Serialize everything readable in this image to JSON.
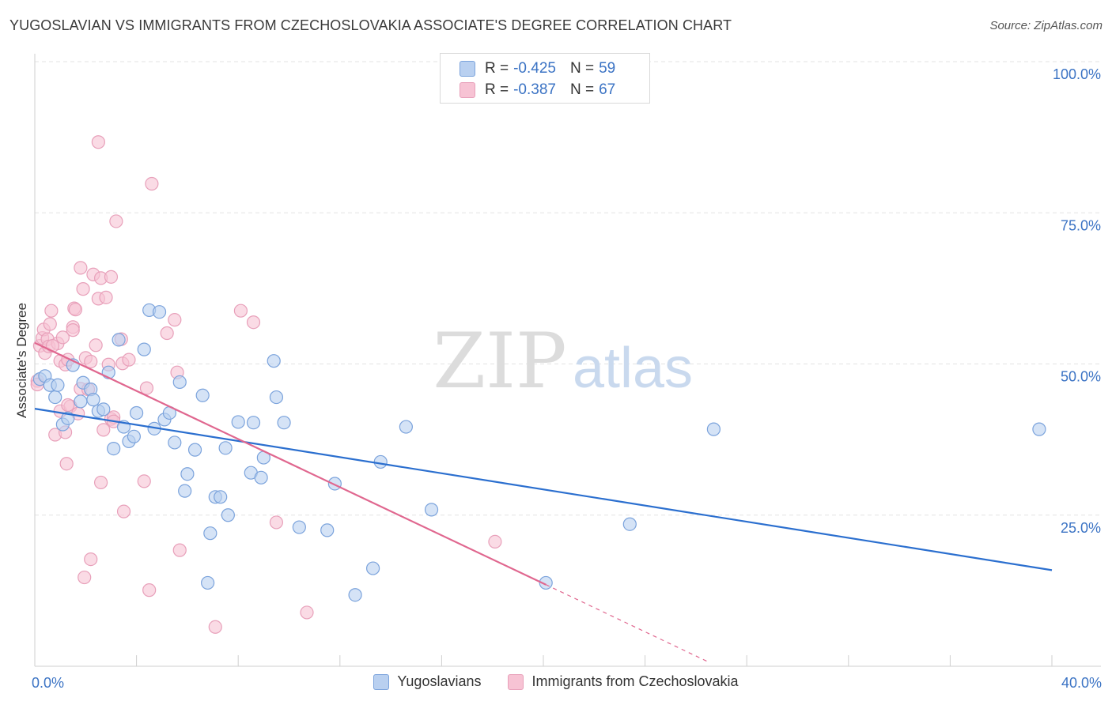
{
  "title": "YUGOSLAVIAN VS IMMIGRANTS FROM CZECHOSLOVAKIA ASSOCIATE'S DEGREE CORRELATION CHART",
  "source": "Source: ZipAtlas.com",
  "watermark": {
    "zip": "ZIP",
    "atlas": "atlas"
  },
  "colors": {
    "blue": "#3b73c4",
    "blue_fill": "#b9d0f0",
    "blue_line": "#2b6fcf",
    "pink": "#e07aa0",
    "pink_fill": "#f7c3d4",
    "pink_line": "#e0678f",
    "tick_text": "#3b73c4",
    "grid": "#e3e3e3"
  },
  "stats": {
    "r_label": "R =",
    "n_label": "N =",
    "blue": {
      "r": "-0.425",
      "n": "59"
    },
    "pink": {
      "r": "-0.387",
      "n": "67"
    }
  },
  "legend": {
    "blue": "Yugoslavians",
    "pink": "Immigrants from Czechoslovakia"
  },
  "chart_data": {
    "type": "scatter",
    "title": "YUGOSLAVIAN VS IMMIGRANTS FROM CZECHOSLOVAKIA ASSOCIATE'S DEGREE CORRELATION CHART",
    "xlabel": "",
    "ylabel": "Associate's Degree",
    "xlim": [
      0,
      40
    ],
    "ylim": [
      0,
      100
    ],
    "x_tick_labels": [
      "0.0%",
      "40.0%"
    ],
    "y_ticks": [
      25,
      50,
      75,
      100
    ],
    "y_tick_labels": [
      "25.0%",
      "50.0%",
      "75.0%",
      "100.0%"
    ],
    "grid": true,
    "series": [
      {
        "name": "Yugoslavians",
        "color": "#3b73c4",
        "trend": {
          "x": [
            0,
            40
          ],
          "y": [
            42.6,
            15.9
          ]
        },
        "points": [
          [
            0.2,
            47.5
          ],
          [
            0.4,
            48.0
          ],
          [
            0.6,
            46.5
          ],
          [
            0.8,
            44.5
          ],
          [
            0.9,
            46.5
          ],
          [
            1.1,
            40.0
          ],
          [
            1.3,
            41.0
          ],
          [
            1.5,
            49.8
          ],
          [
            1.8,
            43.8
          ],
          [
            1.9,
            46.9
          ],
          [
            2.2,
            45.8
          ],
          [
            2.3,
            44.1
          ],
          [
            2.5,
            42.2
          ],
          [
            2.7,
            42.5
          ],
          [
            2.9,
            48.6
          ],
          [
            3.1,
            36.0
          ],
          [
            3.3,
            54.0
          ],
          [
            3.5,
            39.6
          ],
          [
            3.7,
            37.2
          ],
          [
            3.9,
            38.0
          ],
          [
            4.0,
            41.9
          ],
          [
            4.3,
            52.4
          ],
          [
            4.5,
            58.9
          ],
          [
            4.7,
            39.3
          ],
          [
            4.9,
            58.6
          ],
          [
            5.1,
            40.8
          ],
          [
            5.3,
            41.9
          ],
          [
            5.5,
            37.0
          ],
          [
            5.7,
            47.0
          ],
          [
            5.9,
            29.0
          ],
          [
            6.0,
            31.8
          ],
          [
            6.3,
            35.8
          ],
          [
            6.6,
            44.8
          ],
          [
            6.8,
            13.8
          ],
          [
            6.9,
            22.0
          ],
          [
            7.1,
            28.0
          ],
          [
            7.3,
            28.0
          ],
          [
            7.5,
            36.1
          ],
          [
            7.6,
            25.0
          ],
          [
            8.0,
            40.4
          ],
          [
            8.5,
            32.0
          ],
          [
            8.6,
            40.3
          ],
          [
            8.9,
            31.2
          ],
          [
            9.0,
            34.5
          ],
          [
            9.4,
            50.5
          ],
          [
            9.5,
            44.5
          ],
          [
            9.8,
            40.3
          ],
          [
            10.4,
            23.0
          ],
          [
            11.5,
            22.5
          ],
          [
            11.8,
            30.2
          ],
          [
            12.6,
            11.8
          ],
          [
            13.3,
            16.2
          ],
          [
            13.6,
            33.8
          ],
          [
            14.6,
            39.6
          ],
          [
            15.6,
            25.9
          ],
          [
            20.1,
            13.8
          ],
          [
            23.4,
            23.5
          ],
          [
            26.7,
            39.2
          ],
          [
            39.5,
            39.2
          ]
        ]
      },
      {
        "name": "Immigrants from Czechoslovakia",
        "color": "#e07aa0",
        "trend": {
          "x": [
            0,
            20.1
          ],
          "y": [
            53.5,
            13.5
          ]
        },
        "trend_dashed": {
          "x": [
            20.1,
            26.5
          ],
          "y": [
            13.5,
            0.7
          ]
        },
        "points": [
          [
            0.1,
            47.2
          ],
          [
            0.2,
            53.0
          ],
          [
            0.3,
            54.3
          ],
          [
            0.35,
            55.7
          ],
          [
            0.4,
            51.8
          ],
          [
            0.5,
            54.1
          ],
          [
            0.55,
            52.9
          ],
          [
            0.6,
            56.6
          ],
          [
            0.65,
            58.8
          ],
          [
            0.8,
            38.3
          ],
          [
            0.9,
            53.4
          ],
          [
            1.0,
            50.5
          ],
          [
            1.0,
            42.2
          ],
          [
            1.1,
            54.4
          ],
          [
            1.2,
            49.9
          ],
          [
            1.2,
            38.7
          ],
          [
            1.25,
            33.5
          ],
          [
            1.3,
            50.7
          ],
          [
            1.4,
            43.0
          ],
          [
            1.5,
            56.1
          ],
          [
            1.5,
            55.6
          ],
          [
            1.55,
            59.2
          ],
          [
            1.6,
            59.0
          ],
          [
            1.7,
            41.8
          ],
          [
            1.8,
            65.9
          ],
          [
            1.8,
            45.9
          ],
          [
            1.9,
            62.4
          ],
          [
            1.95,
            14.7
          ],
          [
            2.0,
            51.0
          ],
          [
            2.1,
            45.8
          ],
          [
            2.2,
            50.4
          ],
          [
            2.2,
            17.7
          ],
          [
            2.3,
            64.8
          ],
          [
            2.4,
            53.1
          ],
          [
            2.5,
            86.7
          ],
          [
            2.5,
            60.8
          ],
          [
            2.6,
            64.2
          ],
          [
            2.6,
            30.4
          ],
          [
            2.7,
            39.1
          ],
          [
            2.8,
            61.0
          ],
          [
            2.9,
            49.9
          ],
          [
            3.0,
            64.4
          ],
          [
            3.0,
            40.9
          ],
          [
            3.1,
            41.2
          ],
          [
            3.1,
            40.5
          ],
          [
            3.2,
            73.6
          ],
          [
            3.4,
            54.1
          ],
          [
            3.45,
            50.1
          ],
          [
            3.5,
            25.6
          ],
          [
            3.7,
            50.7
          ],
          [
            4.3,
            30.6
          ],
          [
            4.4,
            46.0
          ],
          [
            4.5,
            12.6
          ],
          [
            4.6,
            79.8
          ],
          [
            5.2,
            55.1
          ],
          [
            5.5,
            57.3
          ],
          [
            5.6,
            48.6
          ],
          [
            5.7,
            19.2
          ],
          [
            7.1,
            6.5
          ],
          [
            8.1,
            58.8
          ],
          [
            8.6,
            56.9
          ],
          [
            9.5,
            23.8
          ],
          [
            10.7,
            8.9
          ],
          [
            18.1,
            20.6
          ],
          [
            0.1,
            46.6
          ],
          [
            1.3,
            43.2
          ],
          [
            0.7,
            53.0
          ]
        ]
      }
    ]
  }
}
